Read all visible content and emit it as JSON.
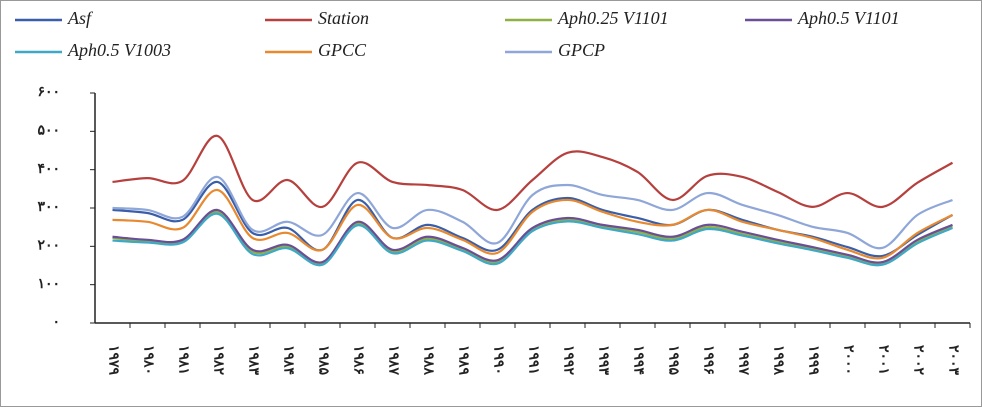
{
  "chart_data": {
    "type": "line",
    "categories": [
      "۱۹۷۹",
      "۱۹۸۰",
      "۱۹۸۱",
      "۱۹۸۲",
      "۱۹۸۳",
      "۱۹۸۴",
      "۱۹۸۵",
      "۱۹۸۶",
      "۱۹۸۷",
      "۱۹۸۸",
      "۱۹۸۹",
      "۱۹۹۰",
      "۱۹۹۱",
      "۱۹۹۲",
      "۱۹۹۳",
      "۱۹۹۴",
      "۱۹۹۵",
      "۱۹۹۶",
      "۱۹۹۷",
      "۱۹۹۸",
      "۱۹۹۹",
      "۲۰۰۰",
      "۲۰۰۱",
      "۲۰۰۲",
      "۲۰۰۳"
    ],
    "series": [
      {
        "name": "Asf",
        "color": "#3a5fa8",
        "values": [
          295,
          287,
          269,
          368,
          235,
          248,
          191,
          321,
          222,
          256,
          222,
          191,
          295,
          326,
          295,
          274,
          256,
          295,
          269,
          243,
          225,
          198,
          175,
          230,
          282
        ]
      },
      {
        "name": "Station",
        "color": "#b5403e",
        "values": [
          368,
          378,
          371,
          488,
          321,
          373,
          303,
          418,
          368,
          360,
          347,
          295,
          373,
          444,
          433,
          394,
          321,
          384,
          381,
          342,
          303,
          339,
          303,
          366,
          418
        ]
      },
      {
        "name": "Aph0.25 V1101",
        "color": "#8fb043",
        "values": [
          222,
          213,
          213,
          290,
          186,
          200,
          155,
          260,
          186,
          220,
          192,
          160,
          244,
          270,
          252,
          238,
          220,
          250,
          232,
          212,
          194,
          174,
          155,
          212,
          252
        ]
      },
      {
        "name": "Aph0.5 V1101",
        "color": "#6a4f97",
        "values": [
          225,
          217,
          217,
          295,
          191,
          204,
          159,
          264,
          191,
          225,
          196,
          164,
          248,
          274,
          256,
          243,
          225,
          256,
          238,
          217,
          198,
          178,
          159,
          217,
          256
        ]
      },
      {
        "name": "Aph0.5 V1003",
        "color": "#3fa8c6",
        "values": [
          215,
          210,
          210,
          285,
          180,
          195,
          152,
          255,
          182,
          215,
          188,
          155,
          240,
          265,
          248,
          232,
          215,
          245,
          228,
          208,
          190,
          170,
          152,
          208,
          248
        ]
      },
      {
        "name": "GPCC",
        "color": "#e8892f",
        "values": [
          269,
          264,
          248,
          347,
          222,
          235,
          191,
          308,
          222,
          248,
          217,
          183,
          290,
          321,
          290,
          264,
          256,
          295,
          264,
          243,
          222,
          191,
          170,
          235,
          282
        ]
      },
      {
        "name": "GPCP",
        "color": "#8ea6d8",
        "values": [
          300,
          295,
          277,
          381,
          243,
          264,
          230,
          339,
          248,
          295,
          264,
          209,
          334,
          360,
          334,
          321,
          295,
          339,
          308,
          282,
          251,
          235,
          196,
          282,
          321
        ]
      }
    ],
    "ylim": [
      0,
      600
    ],
    "yticks": [
      {
        "value": 0,
        "label": "۰"
      },
      {
        "value": 100,
        "label": "۱۰۰"
      },
      {
        "value": 200,
        "label": "۲۰۰"
      },
      {
        "value": 300,
        "label": "۳۰۰"
      },
      {
        "value": 400,
        "label": "۴۰۰"
      },
      {
        "value": 500,
        "label": "۵۰۰"
      },
      {
        "value": 600,
        "label": "۶۰۰"
      }
    ]
  }
}
